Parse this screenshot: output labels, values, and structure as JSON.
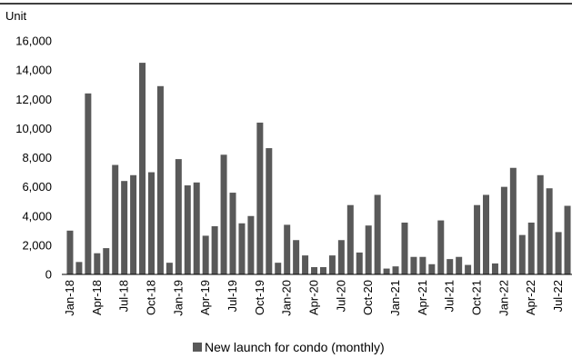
{
  "chart_data": {
    "type": "bar",
    "unit_label": "Unit",
    "ylim": [
      0,
      16000
    ],
    "y_ticks": [
      0,
      2000,
      4000,
      6000,
      8000,
      10000,
      12000,
      14000,
      16000
    ],
    "y_tick_labels": [
      "0",
      "2,000",
      "4,000",
      "6,000",
      "8,000",
      "10,000",
      "12,000",
      "14,000",
      "16,000"
    ],
    "grid": false,
    "legend_position": "bottom",
    "colors": {
      "bar": "#595959",
      "axis": "#000000"
    },
    "x_labels": [
      "Jan-18",
      "Apr-18",
      "Jul-18",
      "Oct-18",
      "Jan-19",
      "Apr-19",
      "Jul-19",
      "Oct-19",
      "Jan-20",
      "Apr-20",
      "Jul-20",
      "Oct-20",
      "Jan-21",
      "Apr-21",
      "Jul-21",
      "Oct-21",
      "Jan-22",
      "Apr-22",
      "Jul-22"
    ],
    "categories": [
      "Jan-18",
      "Feb-18",
      "Mar-18",
      "Apr-18",
      "May-18",
      "Jun-18",
      "Jul-18",
      "Aug-18",
      "Sep-18",
      "Oct-18",
      "Nov-18",
      "Dec-18",
      "Jan-19",
      "Feb-19",
      "Mar-19",
      "Apr-19",
      "May-19",
      "Jun-19",
      "Jul-19",
      "Aug-19",
      "Sep-19",
      "Oct-19",
      "Nov-19",
      "Dec-19",
      "Jan-20",
      "Feb-20",
      "Mar-20",
      "Apr-20",
      "May-20",
      "Jun-20",
      "Jul-20",
      "Aug-20",
      "Sep-20",
      "Oct-20",
      "Nov-20",
      "Dec-20",
      "Jan-21",
      "Feb-21",
      "Mar-21",
      "Apr-21",
      "May-21",
      "Jun-21",
      "Jul-21",
      "Aug-21",
      "Sep-21",
      "Oct-21",
      "Nov-21",
      "Dec-21",
      "Jan-22",
      "Feb-22",
      "Mar-22",
      "Apr-22",
      "May-22",
      "Jun-22",
      "Jul-22",
      "Aug-22"
    ],
    "series": [
      {
        "name": "New launch for condo (monthly)",
        "values": [
          3000,
          850,
          12400,
          1450,
          1800,
          7500,
          6400,
          6800,
          14500,
          7000,
          12900,
          800,
          7900,
          6100,
          6300,
          2650,
          3300,
          8200,
          5600,
          3500,
          4000,
          10400,
          8650,
          800,
          3400,
          2350,
          1300,
          500,
          500,
          1300,
          2350,
          4750,
          1500,
          3350,
          5450,
          400,
          550,
          3550,
          1200,
          1200,
          700,
          3700,
          1050,
          1200,
          650,
          4750,
          5450,
          750,
          6000,
          7300,
          2700,
          3550,
          6800,
          5900,
          2900,
          4700
        ]
      }
    ]
  }
}
